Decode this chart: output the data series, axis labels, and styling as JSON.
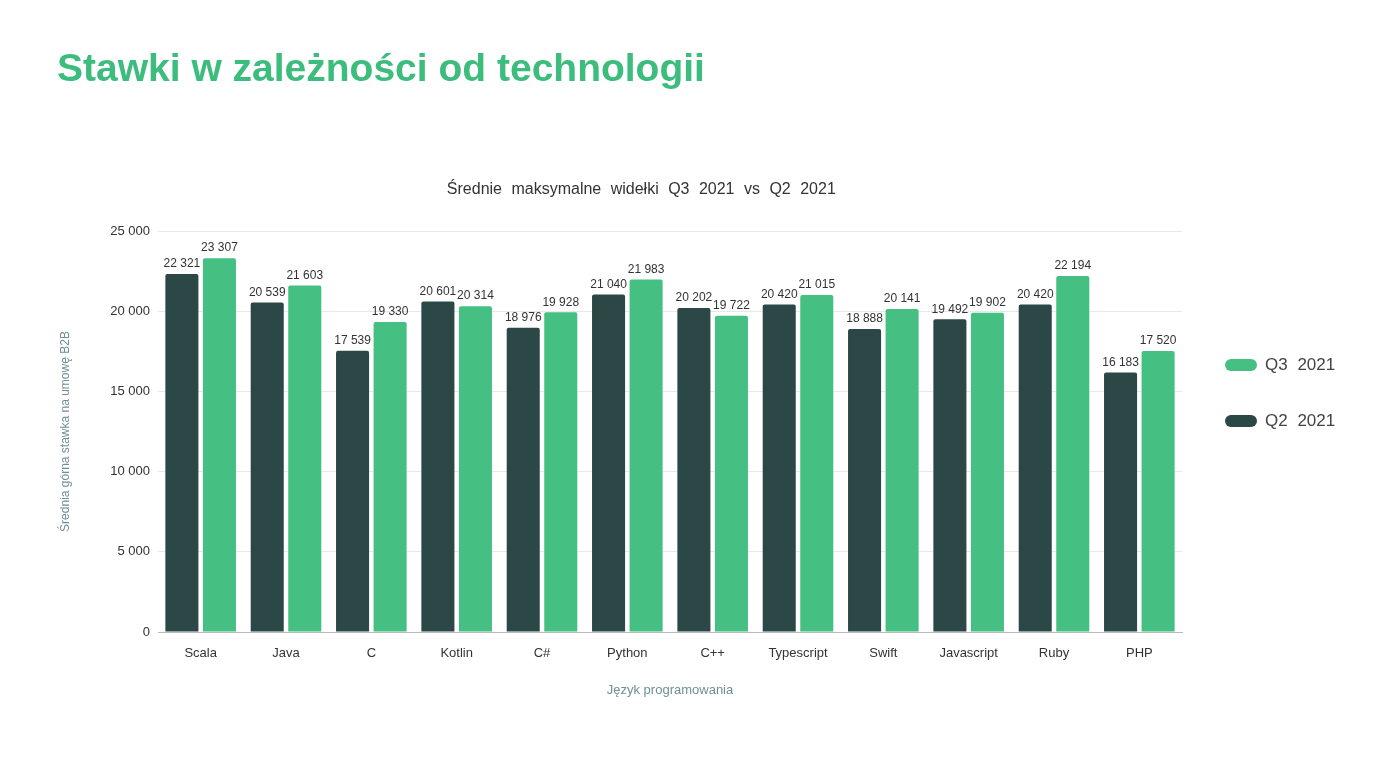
{
  "chart_data": {
    "type": "bar",
    "title": "Stawki w zależności od technologii",
    "subtitle": "Średnie maksymalne widełki Q3 2021 vs Q2 2021",
    "xlabel": "Język programowania",
    "ylabel": "Średnia górna stawka na umowę B2B",
    "categories": [
      "Scala",
      "Java",
      "C",
      "Kotlin",
      "C#",
      "Python",
      "C++",
      "Typescript",
      "Swift",
      "Javascript",
      "Ruby",
      "PHP"
    ],
    "series": [
      {
        "name": "Q2 2021",
        "color": "#2b4746",
        "values": [
          22321,
          20539,
          17539,
          20601,
          18976,
          21040,
          20202,
          20420,
          18888,
          19492,
          20420,
          16183
        ],
        "value_labels": [
          "22 321",
          "20 539",
          "17 539",
          "20 601",
          "18 976",
          "21 040",
          "20 202",
          "20 420",
          "18 888",
          "19 492",
          "20 420",
          "16 183"
        ]
      },
      {
        "name": "Q3 2021",
        "color": "#46bf82",
        "values": [
          23307,
          21603,
          19330,
          20314,
          19928,
          21983,
          19722,
          21015,
          20141,
          19902,
          22194,
          17520
        ],
        "value_labels": [
          "23 307",
          "21 603",
          "19 330",
          "20 314",
          "19 928",
          "21 983",
          "19 722",
          "21 015",
          "20 141",
          "19 902",
          "22 194",
          "17 520"
        ]
      }
    ],
    "ylim": [
      0,
      25000
    ],
    "yticks": [
      0,
      {
        "value": 5000,
        "label": "5 000"
      },
      {
        "value": 10000,
        "label": "10 000"
      },
      {
        "value": 15000,
        "label": "15 000"
      },
      {
        "value": 20000,
        "label": "20 000"
      },
      {
        "value": 25000,
        "label": "25 000"
      }
    ],
    "grid": "y",
    "legend": "right"
  }
}
